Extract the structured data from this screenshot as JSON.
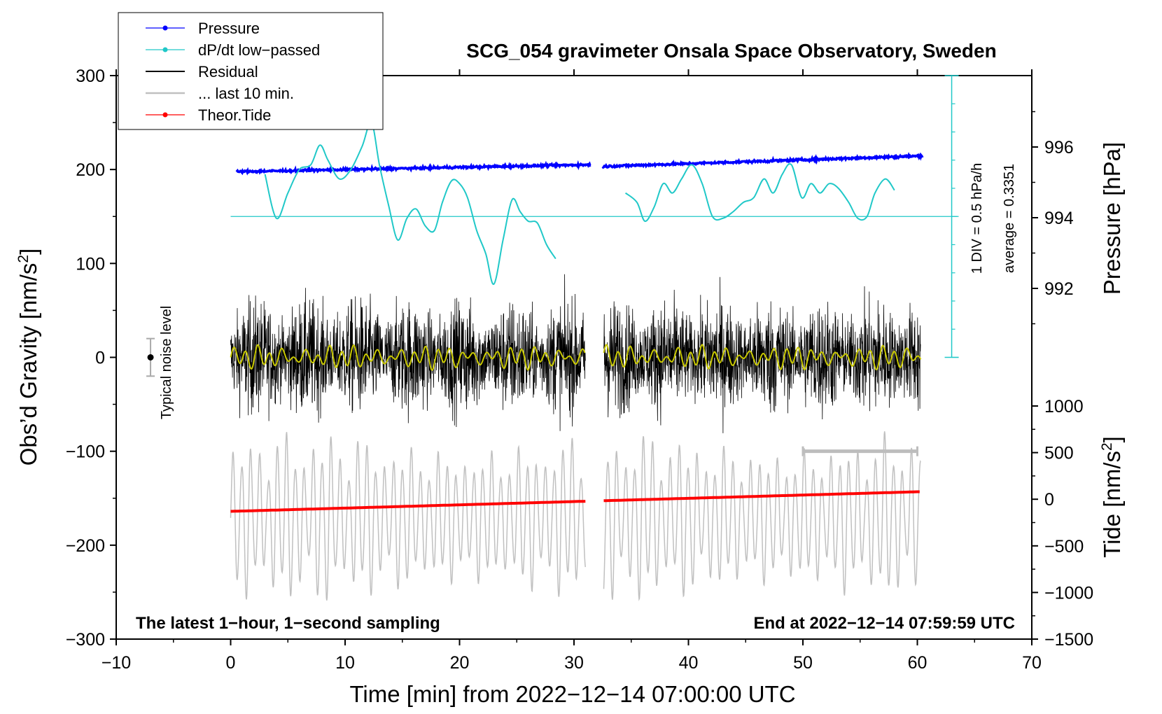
{
  "chart_data": {
    "type": "line",
    "title": "SCG_054 gravimeter Onsala Space Observatory, Sweden",
    "xlabel": "Time [min] from 2022−12−14 07:00:00 UTC",
    "ylabel_left": "Obs’d Gravity [nm/s",
    "ylabel_left_sup": "2",
    "ylabel_left_close": "]",
    "ylabel_right_pressure": "Pressure [hPa]",
    "ylabel_right_tide": "Tide [nm/s",
    "ylabel_right_tide_sup": "2",
    "ylabel_right_tide_close": "]",
    "xlim": [
      -10,
      70
    ],
    "ylim_left": [
      -300,
      300
    ],
    "x_ticks": [
      "−10",
      "0",
      "10",
      "20",
      "30",
      "40",
      "50",
      "60",
      "70"
    ],
    "x_tick_values": [
      -10,
      0,
      10,
      20,
      30,
      40,
      50,
      60,
      70
    ],
    "y_ticks_left": [
      "300",
      "200",
      "100",
      "0",
      "−100",
      "−200",
      "−300"
    ],
    "y_tick_values_left": [
      300,
      200,
      100,
      0,
      -100,
      -200,
      -300
    ],
    "pressure_ticks": [
      "996",
      "994",
      "992"
    ],
    "pressure_tick_values": [
      996,
      994,
      992
    ],
    "tide_ticks": [
      "1000",
      "500",
      "0",
      "−500",
      "−1000",
      "−1500"
    ],
    "tide_tick_values": [
      1000,
      500,
      0,
      -500,
      -1000,
      -1500
    ],
    "legend": {
      "pressure": "Pressure",
      "dpdt": "dP/dt low−passed",
      "residual": "Residual",
      "last10": "... last 10 min.",
      "tide": "Theor.Tide"
    },
    "scale_bar_label": "1 DIV = 0.5 hPa/h",
    "average_label": "average = 0.3351",
    "noise_label": "Typical noise level",
    "note_left": "The latest 1−hour, 1−second sampling",
    "note_right": "End at 2022−12−14 07:59:59 UTC",
    "series": [
      {
        "name": "Pressure",
        "color": "#0000ff",
        "segments": [
          [
            0.5,
            31.5,
            995.3,
            995.5
          ],
          [
            32.5,
            60.5,
            995.45,
            995.75
          ]
        ]
      },
      {
        "name": "dP/dt low-passed",
        "color": "#20c8c8",
        "x": [
          3,
          4,
          5,
          6,
          7,
          7.8,
          8.5,
          9.5,
          10.5,
          11.5,
          12.3,
          13,
          13.8,
          14.6,
          15.4,
          16.2,
          17,
          17.8,
          18.5,
          19.3,
          20,
          20.7,
          21.5,
          22.3,
          23,
          23.8,
          24.6,
          25.3,
          26,
          26.8,
          27.6,
          28.4
        ],
        "values": [
          195,
          148,
          175,
          200,
          205,
          226,
          210,
          190,
          200,
          225,
          250,
          205,
          162,
          125,
          148,
          158,
          140,
          135,
          165,
          188,
          185,
          170,
          135,
          110,
          78,
          125,
          168,
          155,
          145,
          143,
          120,
          105
        ]
      },
      {
        "name": "dP/dt low-passed (b)",
        "color": "#20c8c8",
        "x": [
          34.5,
          35.5,
          36.2,
          37,
          37.8,
          38.6,
          39.4,
          40.3,
          41.2,
          42.1,
          43,
          43.9,
          44.8,
          45.7,
          46.6,
          47.4,
          48.2,
          49,
          49.9,
          50.7,
          51.5,
          52.3,
          53.1,
          54,
          54.8,
          55.6,
          56.3,
          57.2,
          58
        ],
        "values": [
          175,
          165,
          145,
          160,
          185,
          175,
          190,
          205,
          185,
          150,
          148,
          155,
          165,
          170,
          190,
          175,
          195,
          205,
          170,
          185,
          175,
          185,
          180,
          165,
          148,
          150,
          175,
          190,
          178
        ]
      },
      {
        "name": "Residual",
        "color": "#000000",
        "amplitude": 60
      },
      {
        "name": "Residual low-passed",
        "color": "#c8c800",
        "amplitude": 10
      },
      {
        "name": "... last 10 min.",
        "color": "#c0c0c0",
        "tide_amplitude": 1000
      },
      {
        "name": "Theor.Tide",
        "color": "#ff0000",
        "tide_start": -130,
        "tide_end": 80
      }
    ],
    "noise_bar": {
      "x": -7,
      "value": 0,
      "error": 20
    },
    "last10_bar": {
      "x_start": 50,
      "x_end": 60,
      "value": -100
    }
  }
}
